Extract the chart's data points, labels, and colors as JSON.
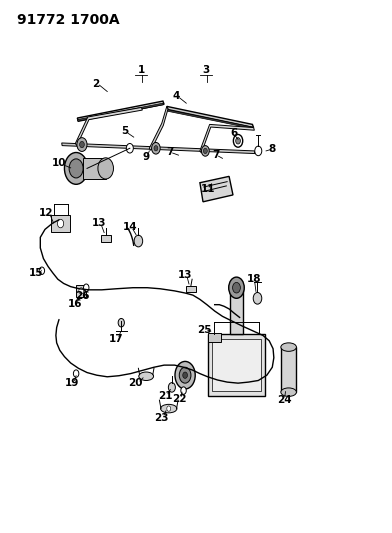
{
  "title": "91772 1700A",
  "background_color": "#ffffff",
  "line_color": "#000000",
  "title_fontsize": 10,
  "label_fontsize": 7.5,
  "fig_width": 3.92,
  "fig_height": 5.33,
  "dpi": 100
}
